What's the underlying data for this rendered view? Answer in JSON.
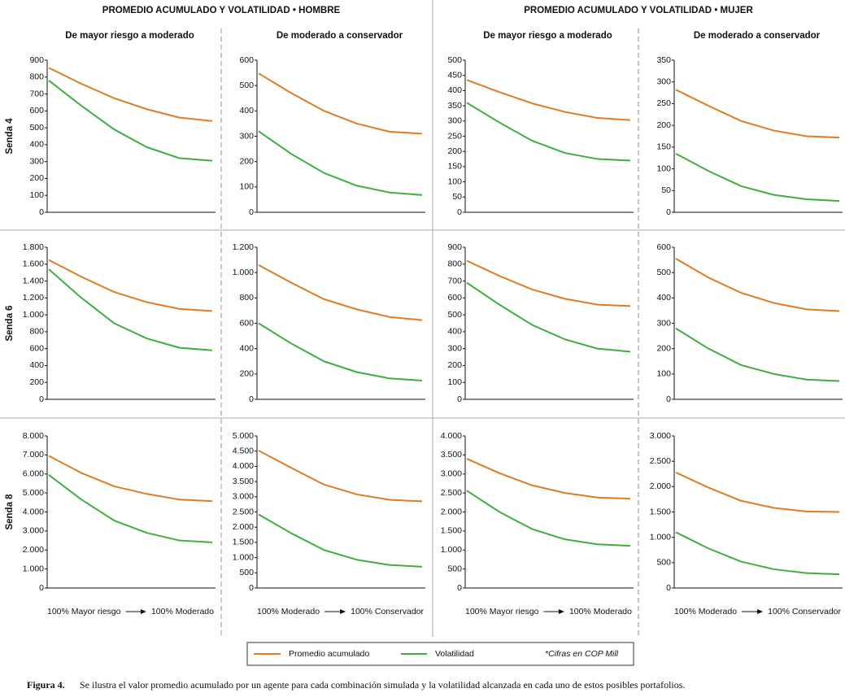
{
  "groups": [
    "PROMEDIO ACUMULADO Y VOLATILIDAD • HOMBRE",
    "PROMEDIO ACUMULADO Y VOLATILIDAD • MUJER"
  ],
  "columns": [
    "De mayor riesgo a moderado",
    "De moderado a conservador",
    "De mayor riesgo a moderado",
    "De moderado a conservador"
  ],
  "rows": [
    "Senda 4",
    "Senda 6",
    "Senda 8"
  ],
  "x_labels": [
    {
      "from": "100% Mayor riesgo",
      "to": "100% Moderado"
    },
    {
      "from": "100% Moderado",
      "to": "100% Conservador"
    },
    {
      "from": "100% Mayor riesgo",
      "to": "100% Moderado"
    },
    {
      "from": "100% Moderado",
      "to": "100% Conservador"
    }
  ],
  "legend": {
    "items": [
      {
        "name": "Promedio acumulado",
        "color": "#e07b22"
      },
      {
        "name": "Volatilidad",
        "color": "#3fae3f"
      }
    ],
    "note": "*Cifras en COP Mill"
  },
  "caption": {
    "label": "Figura 4.",
    "text": "Se ilustra el valor promedio acumulado por un agente para cada combinación simulada y la volatilidad alcanzada en cada uno de estos posibles portafolios."
  },
  "chart_data": [
    {
      "type": "line",
      "ylim": [
        0,
        900
      ],
      "yticks": [
        0,
        100,
        200,
        300,
        400,
        500,
        600,
        700,
        800,
        900
      ],
      "series": [
        {
          "color": "#e07b22",
          "values": [
            855,
            760,
            675,
            610,
            560,
            540
          ]
        },
        {
          "color": "#3fae3f",
          "values": [
            780,
            630,
            490,
            385,
            320,
            305
          ]
        }
      ]
    },
    {
      "type": "line",
      "ylim": [
        0,
        600
      ],
      "yticks": [
        0,
        100,
        200,
        300,
        400,
        500,
        600
      ],
      "series": [
        {
          "color": "#e07b22",
          "values": [
            548,
            470,
            400,
            350,
            318,
            310
          ]
        },
        {
          "color": "#3fae3f",
          "values": [
            320,
            230,
            155,
            105,
            78,
            68
          ]
        }
      ]
    },
    {
      "type": "line",
      "ylim": [
        0,
        500
      ],
      "yticks": [
        0,
        50,
        100,
        150,
        200,
        250,
        300,
        350,
        400,
        450,
        500
      ],
      "series": [
        {
          "color": "#e07b22",
          "values": [
            435,
            395,
            358,
            330,
            310,
            303
          ]
        },
        {
          "color": "#3fae3f",
          "values": [
            360,
            295,
            235,
            195,
            175,
            170
          ]
        }
      ]
    },
    {
      "type": "line",
      "ylim": [
        0,
        350
      ],
      "yticks": [
        0,
        50,
        100,
        150,
        200,
        250,
        300,
        350
      ],
      "series": [
        {
          "color": "#e07b22",
          "values": [
            282,
            245,
            210,
            188,
            175,
            172
          ]
        },
        {
          "color": "#3fae3f",
          "values": [
            135,
            95,
            60,
            40,
            30,
            26
          ]
        }
      ]
    },
    {
      "type": "line",
      "ylim": [
        0,
        1800
      ],
      "yticks": [
        0,
        200,
        400,
        600,
        800,
        {
          "value": 1000,
          "label": "1.000"
        },
        {
          "value": 1200,
          "label": "1.200"
        },
        {
          "value": 1400,
          "label": "1.400"
        },
        {
          "value": 1600,
          "label": "1.600"
        },
        {
          "value": 1800,
          "label": "1.800"
        }
      ],
      "series": [
        {
          "color": "#e07b22",
          "values": [
            1650,
            1450,
            1270,
            1150,
            1070,
            1045
          ]
        },
        {
          "color": "#3fae3f",
          "values": [
            1540,
            1200,
            900,
            720,
            610,
            580
          ]
        }
      ]
    },
    {
      "type": "line",
      "ylim": [
        0,
        1200
      ],
      "yticks": [
        0,
        200,
        400,
        600,
        800,
        {
          "value": 1000,
          "label": "1.000"
        },
        {
          "value": 1200,
          "label": "1.200"
        }
      ],
      "series": [
        {
          "color": "#e07b22",
          "values": [
            1060,
            920,
            790,
            710,
            650,
            625
          ]
        },
        {
          "color": "#3fae3f",
          "values": [
            600,
            440,
            300,
            215,
            165,
            148
          ]
        }
      ]
    },
    {
      "type": "line",
      "ylim": [
        0,
        900
      ],
      "yticks": [
        0,
        100,
        200,
        300,
        400,
        500,
        600,
        700,
        800,
        900
      ],
      "series": [
        {
          "color": "#e07b22",
          "values": [
            820,
            730,
            650,
            595,
            560,
            552
          ]
        },
        {
          "color": "#3fae3f",
          "values": [
            690,
            560,
            440,
            355,
            300,
            282
          ]
        }
      ]
    },
    {
      "type": "line",
      "ylim": [
        0,
        600
      ],
      "yticks": [
        0,
        100,
        200,
        300,
        400,
        500,
        600
      ],
      "series": [
        {
          "color": "#e07b22",
          "values": [
            555,
            480,
            420,
            380,
            355,
            348
          ]
        },
        {
          "color": "#3fae3f",
          "values": [
            280,
            200,
            135,
            100,
            78,
            72
          ]
        }
      ]
    },
    {
      "type": "line",
      "ylim": [
        0,
        8000
      ],
      "yticks": [
        0,
        {
          "value": 1000,
          "label": "1.000"
        },
        {
          "value": 2000,
          "label": "2.000"
        },
        {
          "value": 3000,
          "label": "3.000"
        },
        {
          "value": 4000,
          "label": "4.000"
        },
        {
          "value": 5000,
          "label": "5.000"
        },
        {
          "value": 6000,
          "label": "6.000"
        },
        {
          "value": 7000,
          "label": "7.000"
        },
        {
          "value": 8000,
          "label": "8.000"
        }
      ],
      "series": [
        {
          "color": "#e07b22",
          "values": [
            6950,
            6050,
            5350,
            4950,
            4650,
            4570
          ]
        },
        {
          "color": "#3fae3f",
          "values": [
            5950,
            4650,
            3550,
            2900,
            2500,
            2400
          ]
        }
      ]
    },
    {
      "type": "line",
      "ylim": [
        0,
        5000
      ],
      "yticks": [
        0,
        500,
        {
          "value": 1000,
          "label": "1.000"
        },
        {
          "value": 1500,
          "label": "1.500"
        },
        {
          "value": 2000,
          "label": "2.000"
        },
        {
          "value": 2500,
          "label": "2.500"
        },
        {
          "value": 3000,
          "label": "3.000"
        },
        {
          "value": 3500,
          "label": "3.500"
        },
        {
          "value": 4000,
          "label": "4.000"
        },
        {
          "value": 4500,
          "label": "4.500"
        },
        {
          "value": 5000,
          "label": "5.000"
        }
      ],
      "series": [
        {
          "color": "#e07b22",
          "values": [
            4520,
            3950,
            3400,
            3080,
            2900,
            2850
          ]
        },
        {
          "color": "#3fae3f",
          "values": [
            2420,
            1800,
            1250,
            930,
            760,
            700
          ]
        }
      ]
    },
    {
      "type": "line",
      "ylim": [
        0,
        4000
      ],
      "yticks": [
        0,
        500,
        {
          "value": 1000,
          "label": "1.000"
        },
        {
          "value": 1500,
          "label": "1.500"
        },
        {
          "value": 2000,
          "label": "2.000"
        },
        {
          "value": 2500,
          "label": "2.500"
        },
        {
          "value": 3000,
          "label": "3.000"
        },
        {
          "value": 3500,
          "label": "3.500"
        },
        {
          "value": 4000,
          "label": "4.000"
        }
      ],
      "series": [
        {
          "color": "#e07b22",
          "values": [
            3400,
            3020,
            2700,
            2500,
            2380,
            2350
          ]
        },
        {
          "color": "#3fae3f",
          "values": [
            2560,
            2000,
            1550,
            1280,
            1150,
            1110
          ]
        }
      ]
    },
    {
      "type": "line",
      "ylim": [
        0,
        3000
      ],
      "yticks": [
        0,
        500,
        {
          "value": 1000,
          "label": "1.000"
        },
        {
          "value": 1500,
          "label": "1.500"
        },
        {
          "value": 2000,
          "label": "2.000"
        },
        {
          "value": 2500,
          "label": "2.500"
        },
        {
          "value": 3000,
          "label": "3.000"
        }
      ],
      "series": [
        {
          "color": "#e07b22",
          "values": [
            2280,
            1980,
            1720,
            1580,
            1510,
            1500
          ]
        },
        {
          "color": "#3fae3f",
          "values": [
            1100,
            780,
            520,
            370,
            295,
            270
          ]
        }
      ]
    }
  ]
}
